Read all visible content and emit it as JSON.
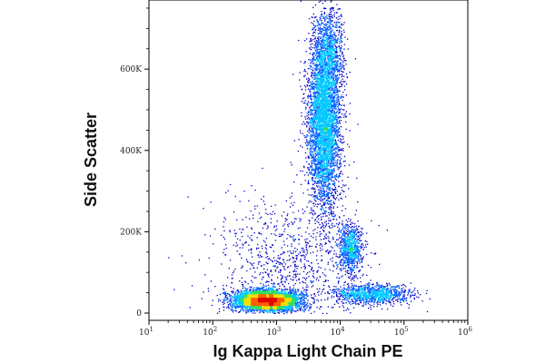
{
  "chart_data": {
    "type": "scatter",
    "subtype": "flow-cytometry density dot plot",
    "xlabel": "Ig Kappa Light Chain PE",
    "ylabel": "Side Scatter",
    "x_scale": "log",
    "xlim": [
      10,
      1000000
    ],
    "x_ticks": [
      {
        "value": 10,
        "base": "10",
        "exp": "1"
      },
      {
        "value": 100,
        "base": "10",
        "exp": "2"
      },
      {
        "value": 1000,
        "base": "10",
        "exp": "3"
      },
      {
        "value": 10000,
        "base": "10",
        "exp": "4"
      },
      {
        "value": 100000,
        "base": "10",
        "exp": "5"
      },
      {
        "value": 1000000,
        "base": "10",
        "exp": "6"
      }
    ],
    "y_scale": "linear",
    "ylim": [
      0,
      770000
    ],
    "y_ticks": [
      {
        "value": 0,
        "label": "0"
      },
      {
        "value": 200000,
        "label": "200K"
      },
      {
        "value": 400000,
        "label": "400K"
      },
      {
        "value": 600000,
        "label": "600K"
      }
    ],
    "colormap": [
      "#0000c8",
      "#0060ff",
      "#00c8ff",
      "#30e060",
      "#f0e000",
      "#ff6000",
      "#e00000"
    ],
    "populations": [
      {
        "x_center": 700,
        "y_center": 32000,
        "log_x_sd": 0.25,
        "y_sd": 12000,
        "weight": 0.38
      },
      {
        "x_center": 5500,
        "y_center": 470000,
        "log_x_sd": 0.13,
        "y_sd": 110000,
        "weight": 0.34
      },
      {
        "x_center": 6500,
        "y_center": 650000,
        "log_x_sd": 0.12,
        "y_sd": 50000,
        "weight": 0.06
      },
      {
        "x_center": 14000,
        "y_center": 160000,
        "log_x_sd": 0.09,
        "y_sd": 30000,
        "weight": 0.06
      },
      {
        "x_center": 30000,
        "y_center": 48000,
        "log_x_sd": 0.3,
        "y_sd": 12000,
        "weight": 0.08
      },
      {
        "x_center": 1500,
        "y_center": 110000,
        "log_x_sd": 0.6,
        "y_sd": 90000,
        "weight": 0.08
      }
    ]
  }
}
